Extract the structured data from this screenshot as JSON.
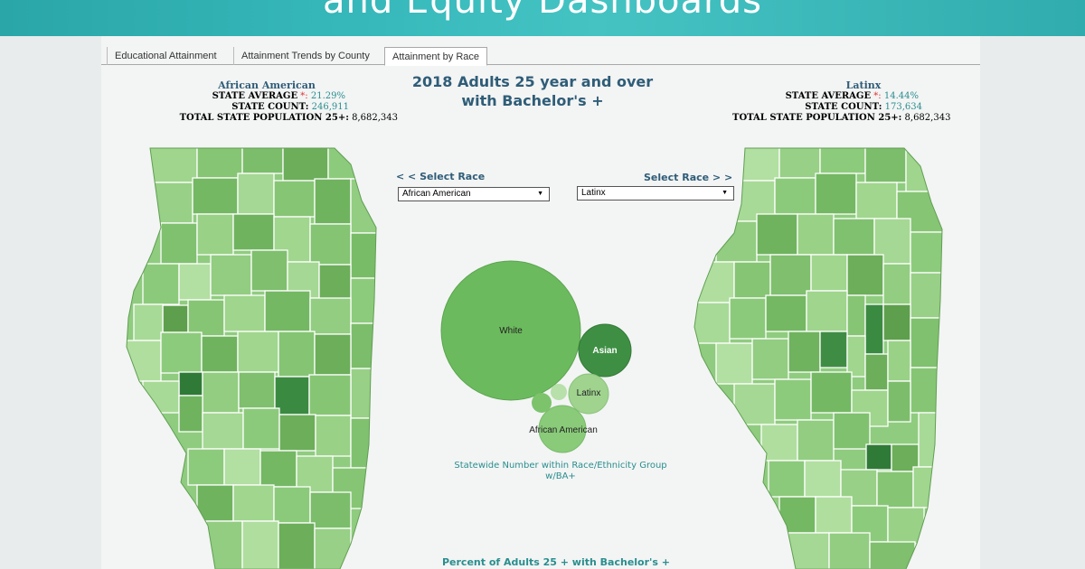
{
  "header": {
    "title": "and Equity Dashboards"
  },
  "tabs": [
    {
      "label": "Educational Attainment"
    },
    {
      "label": "Attainment Trends by County"
    },
    {
      "label": "Attainment by Race"
    }
  ],
  "main_title_line1": "2018 Adults 25 year and over",
  "main_title_line2": "with Bachelor's +",
  "left": {
    "race": "African American",
    "state_average_label": "STATE AVERAGE",
    "asterisk": "*:",
    "state_average_value": "21.29%",
    "state_count_label": "STATE COUNT:",
    "state_count_value": "246,911",
    "total_pop_label": "TOTAL STATE POPULATION 25+:",
    "total_pop_value": "8,682,343",
    "select_label": "< < Select Race",
    "dropdown_value": "African American"
  },
  "right": {
    "race": "Latinx",
    "state_average_label": "STATE AVERAGE",
    "asterisk": "*:",
    "state_average_value": "14.44%",
    "state_count_label": "STATE COUNT:",
    "state_count_value": "173,634",
    "total_pop_label": "TOTAL STATE POPULATION 25+:",
    "total_pop_value": "8,682,343",
    "select_label": "Select Race > >",
    "dropdown_value": "Latinx"
  },
  "bubbles": [
    {
      "label": "White",
      "color": "#6cba5e"
    },
    {
      "label": "Asian",
      "color": "#3e8f43"
    },
    {
      "label": "Latinx",
      "color": "#9fd38e"
    },
    {
      "label": "African American",
      "color": "#8acb7a"
    }
  ],
  "bubble_caption": "Statewide Number within Race/Ethnicity Group w/BA+",
  "footer_title": "Percent of Adults 25 + with Bachelor's +",
  "colors": {
    "banner": "#37b9bb",
    "title": "#2f5d78",
    "accent": "#2a8e8e",
    "map_base": "#8fcc7f"
  }
}
